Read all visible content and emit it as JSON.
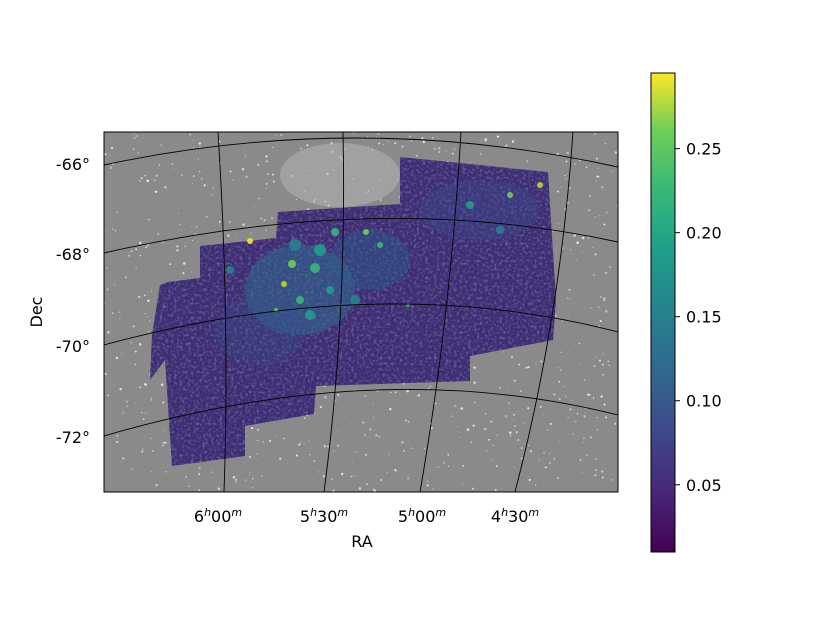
{
  "chart_data": {
    "type": "heatmap",
    "title": "",
    "xlabel": "RA",
    "ylabel": "Dec",
    "x_ticks": [
      {
        "label": "6h00m",
        "hours": 6.0
      },
      {
        "label": "5h30m",
        "hours": 5.5
      },
      {
        "label": "5h00m",
        "hours": 5.0
      },
      {
        "label": "4h30m",
        "hours": 4.5
      }
    ],
    "y_ticks": [
      {
        "label": "-66°",
        "value": -66
      },
      {
        "label": "-68°",
        "value": -68
      },
      {
        "label": "-70°",
        "value": -70
      },
      {
        "label": "-72°",
        "value": -72
      }
    ],
    "colorbar": {
      "colormap": "viridis",
      "range": [
        0.01,
        0.295
      ],
      "ticks": [
        0.05,
        0.1,
        0.15,
        0.2,
        0.25
      ],
      "tick_labels": [
        "0.05",
        "0.10",
        "0.15",
        "0.20",
        "0.25"
      ]
    },
    "background": "grayscale sky image",
    "grid": true,
    "colors": {
      "background_gray": "#8a8a8a",
      "low": "#440154",
      "mid": "#21918c",
      "high": "#fde725"
    }
  }
}
